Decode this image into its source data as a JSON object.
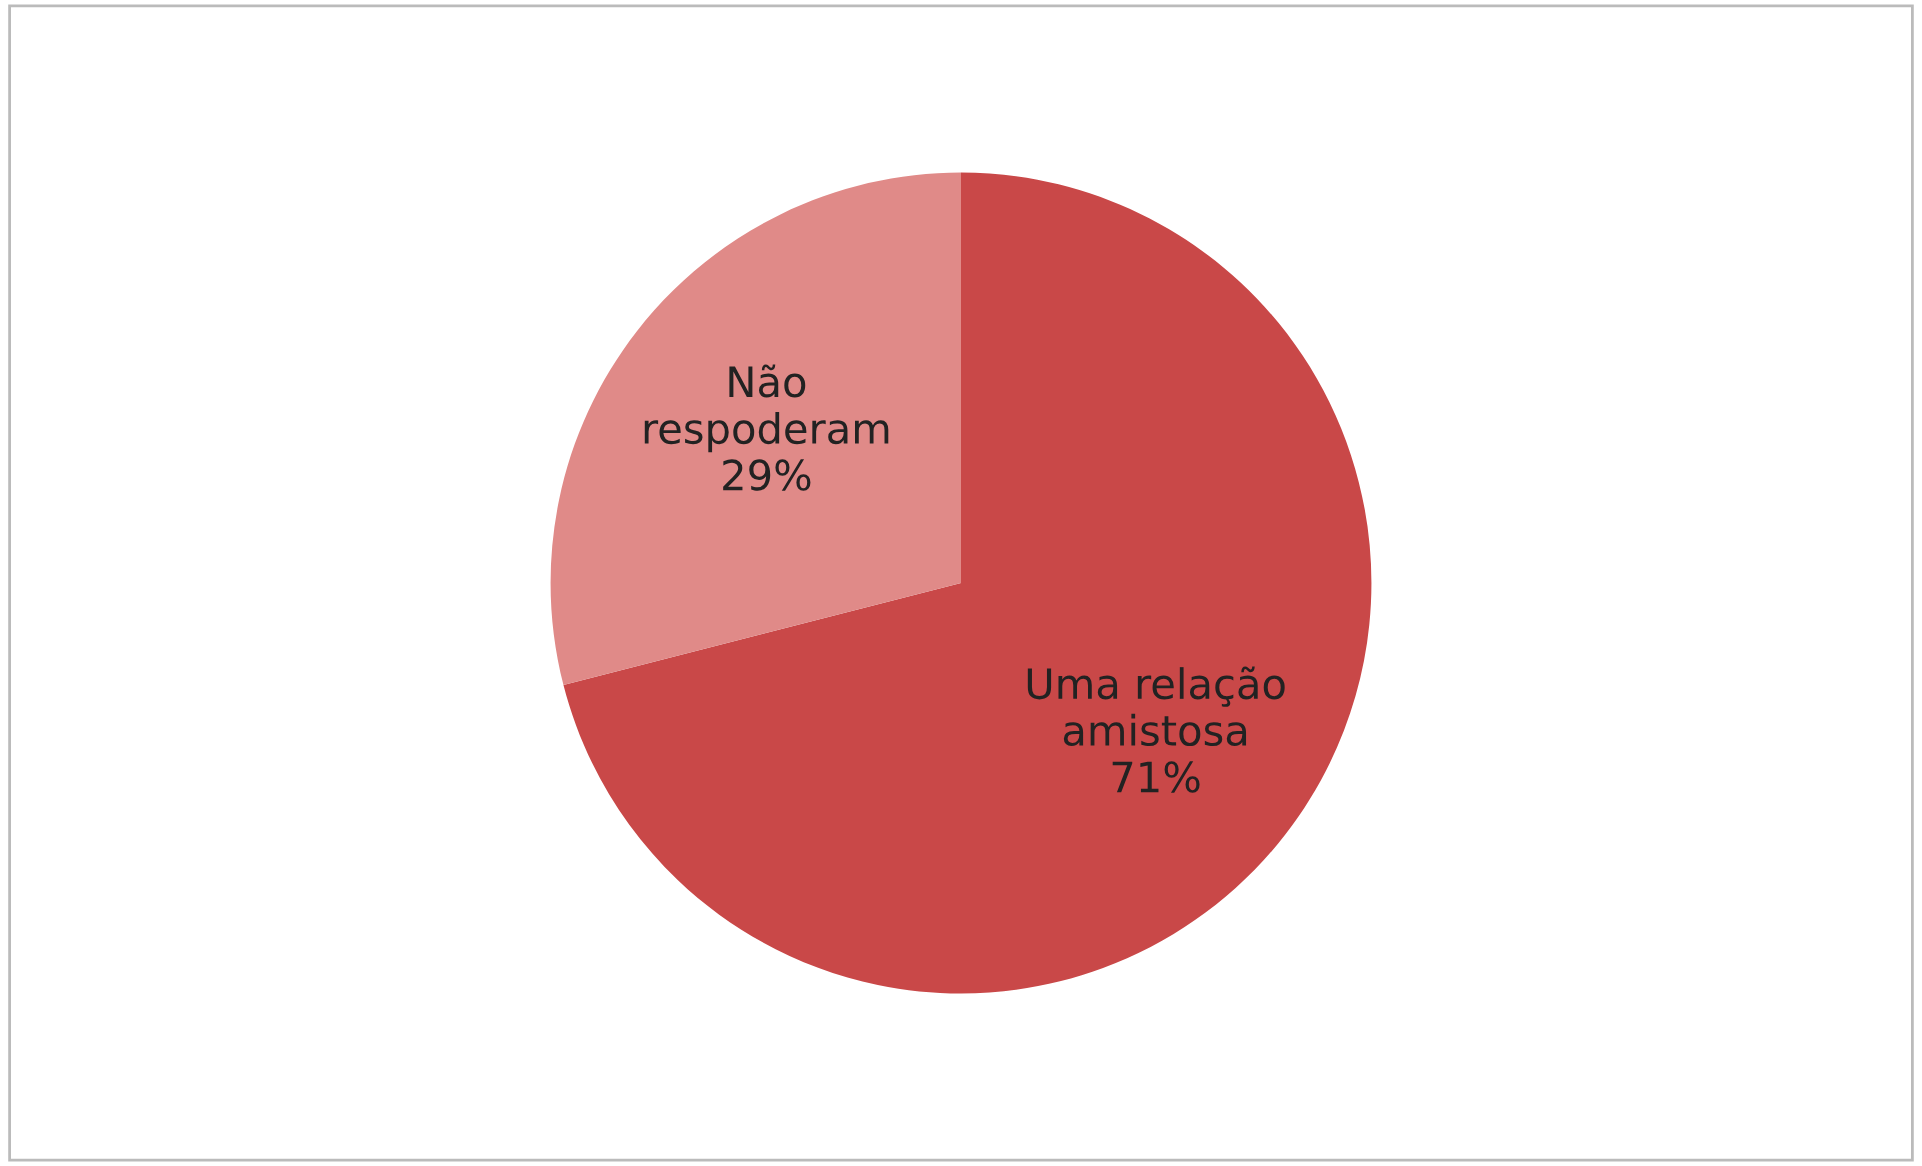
{
  "chart_data": {
    "type": "pie",
    "categories": [
      "Uma relação\namistosa",
      "Não\nrespoderam"
    ],
    "values": [
      71,
      29
    ],
    "colors": [
      "#c94848",
      "#e08a88"
    ],
    "value_labels": [
      "71%",
      "29%"
    ],
    "legend": false
  }
}
